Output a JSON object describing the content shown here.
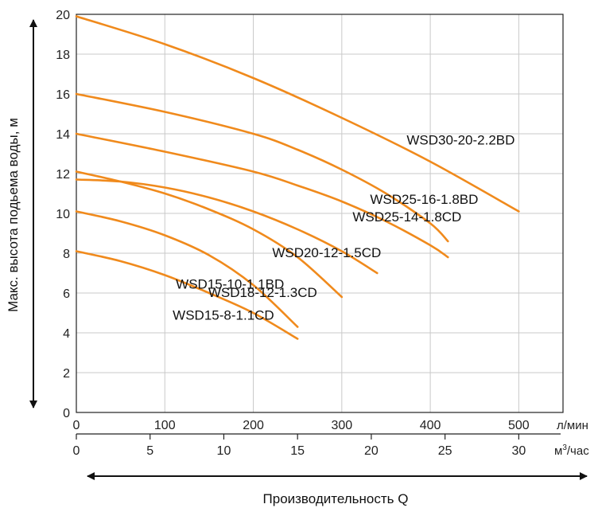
{
  "chart_data": {
    "type": "line",
    "ylabel": "Макс. высота подьема воды, м",
    "xlabel": "Производительность Q",
    "ylim": [
      0,
      20
    ],
    "xlim_lmin": [
      0,
      550
    ],
    "yticks": [
      0,
      2,
      4,
      6,
      8,
      10,
      12,
      14,
      16,
      18,
      20
    ],
    "xticks_lmin": [
      0,
      100,
      200,
      300,
      400,
      500
    ],
    "xticks_m3h": [
      0,
      5,
      10,
      15,
      20,
      25,
      30
    ],
    "unit_lmin": "л/мин",
    "unit_m3h_pre": "м",
    "unit_m3h_sup": "3",
    "unit_m3h_post": "/час",
    "grid": true,
    "color": "#f08a1c",
    "series": [
      {
        "name": "WSD30-20-2.2BD",
        "x": [
          0,
          100,
          200,
          300,
          400,
          500
        ],
        "y": [
          19.9,
          18.5,
          16.8,
          14.8,
          12.6,
          10.1
        ]
      },
      {
        "name": "WSD25-16-1.8BD",
        "x": [
          0,
          100,
          200,
          250,
          300,
          350,
          400,
          420
        ],
        "y": [
          16.0,
          15.1,
          14.0,
          13.2,
          12.2,
          11.0,
          9.5,
          8.6
        ]
      },
      {
        "name": "WSD25-14-1.8CD",
        "x": [
          0,
          100,
          200,
          250,
          300,
          350,
          400,
          420
        ],
        "y": [
          14.0,
          13.1,
          12.1,
          11.4,
          10.6,
          9.6,
          8.4,
          7.8
        ]
      },
      {
        "name": "WSD20-12-1.5CD",
        "x": [
          0,
          50,
          100,
          150,
          200,
          250,
          300,
          340
        ],
        "y": [
          11.7,
          11.6,
          11.3,
          10.8,
          10.1,
          9.2,
          8.1,
          7.0
        ]
      },
      {
        "name": "WSD18-12-1.3CD",
        "x": [
          0,
          50,
          100,
          150,
          200,
          250,
          300
        ],
        "y": [
          12.1,
          11.6,
          11.0,
          10.2,
          9.2,
          7.8,
          5.8
        ]
      },
      {
        "name": "WSD15-10-1.1BD",
        "x": [
          0,
          50,
          100,
          150,
          200,
          250
        ],
        "y": [
          10.1,
          9.6,
          8.9,
          7.9,
          6.4,
          4.3
        ]
      },
      {
        "name": "WSD15-8-1.1CD",
        "x": [
          0,
          50,
          100,
          150,
          200,
          250
        ],
        "y": [
          8.1,
          7.6,
          6.9,
          6.0,
          5.0,
          3.7
        ]
      }
    ]
  }
}
